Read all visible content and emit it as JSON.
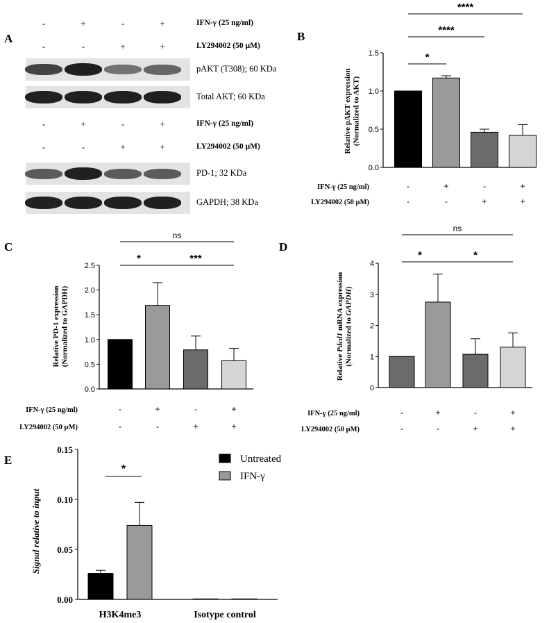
{
  "panels": {
    "A": "A",
    "B": "B",
    "C": "C",
    "D": "D",
    "E": "E"
  },
  "blot_top": {
    "treatments": [
      {
        "label": "IFN-γ (25 ng/ml)",
        "signs": [
          "-",
          "+",
          "-",
          "+"
        ]
      },
      {
        "label": "LY294002 (50 µM)",
        "signs": [
          "-",
          "-",
          "+",
          "+"
        ]
      }
    ],
    "bands": [
      {
        "label": "pAKT (T308); 60 KDa",
        "intensities": [
          0.8,
          0.95,
          0.6,
          0.65
        ]
      },
      {
        "label": "Total AKT; 60 KDa",
        "intensities": [
          0.95,
          0.95,
          0.95,
          0.95
        ]
      }
    ]
  },
  "blot_bottom": {
    "treatments": [
      {
        "label": "IFN-γ (25 ng/ml)",
        "signs": [
          "-",
          "+",
          "-",
          "+"
        ]
      },
      {
        "label": "LY294002 (50 µM)",
        "signs": [
          "-",
          "-",
          "+",
          "+"
        ]
      }
    ],
    "bands": [
      {
        "label": "PD-1; 32 KDa",
        "intensities": [
          0.7,
          0.95,
          0.7,
          0.7
        ]
      },
      {
        "label": "GAPDH; 38 KDa",
        "intensities": [
          0.95,
          0.95,
          0.95,
          0.95
        ]
      }
    ]
  },
  "chart_data": [
    {
      "panel": "B",
      "type": "bar",
      "ylabel": "Relative pAKT expression (Normalized to AKT)",
      "ylim": [
        0,
        1.5
      ],
      "yticks": [
        "0.0",
        "0.5",
        "1.0",
        "1.5"
      ],
      "values": [
        1.0,
        1.17,
        0.46,
        0.42
      ],
      "errors": [
        0,
        0.03,
        0.04,
        0.14
      ],
      "colors": [
        "#000000",
        "#9a9a9a",
        "#6b6b6b",
        "#d5d5d5"
      ],
      "treatments": [
        {
          "label": "IFN-γ (25 ng/ml)",
          "signs": [
            "-",
            "+",
            "-",
            "+"
          ]
        },
        {
          "label": "LY294002 (50 µM)",
          "signs": [
            "-",
            "-",
            "+",
            "+"
          ]
        }
      ],
      "annotations": [
        {
          "from": 0,
          "to": 1,
          "text": "*",
          "level": 0
        },
        {
          "from": 0,
          "to": 2,
          "text": "****",
          "level": 1
        },
        {
          "from": 0,
          "to": 3,
          "text": "****",
          "level": 2
        }
      ]
    },
    {
      "panel": "C",
      "type": "bar",
      "ylabel": "Relative PD-1 expression (Normalized to GAPDH)",
      "ylim": [
        0,
        2.5
      ],
      "yticks": [
        "0.0",
        "0.5",
        "1.0",
        "1.5",
        "2.0",
        "2.5"
      ],
      "values": [
        1.0,
        1.69,
        0.79,
        0.57
      ],
      "errors": [
        0,
        0.46,
        0.28,
        0.25
      ],
      "colors": [
        "#000000",
        "#9a9a9a",
        "#6b6b6b",
        "#d5d5d5"
      ],
      "treatments": [
        {
          "label": "IFN-γ (25 ng/ml)",
          "signs": [
            "-",
            "+",
            "-",
            "+"
          ]
        },
        {
          "label": "LY294002 (50 µM)",
          "signs": [
            "-",
            "-",
            "+",
            "+"
          ]
        }
      ],
      "annotations": [
        {
          "from": 0,
          "to": 1,
          "text": "*",
          "level": 0
        },
        {
          "from": 1,
          "to": 3,
          "text": "***",
          "level": 0
        },
        {
          "from": 0,
          "to": 3,
          "text": "ns",
          "level": 1
        }
      ]
    },
    {
      "panel": "D",
      "type": "bar",
      "ylabel_pre": "Relative ",
      "ylabel_ital": "Pdcd1",
      "ylabel_post": " mRNA expression",
      "ylabel2_pre": "(Normalized to ",
      "ylabel2_ital": "GAPDH",
      "ylabel2_post": ")",
      "ylim": [
        0,
        4
      ],
      "yticks": [
        "0",
        "1",
        "2",
        "3",
        "4"
      ],
      "values": [
        1.0,
        2.75,
        1.07,
        1.3
      ],
      "errors": [
        0,
        0.9,
        0.5,
        0.46
      ],
      "colors": [
        "#6b6b6b",
        "#9a9a9a",
        "#6b6b6b",
        "#d5d5d5"
      ],
      "treatments": [
        {
          "label": "IFN-γ (25 ng/ml)",
          "signs": [
            "-",
            "+",
            "-",
            "+"
          ]
        },
        {
          "label": "LY294002 (50 µM)",
          "signs": [
            "-",
            "-",
            "+",
            "+"
          ]
        }
      ],
      "annotations": [
        {
          "from": 0,
          "to": 1,
          "text": "*",
          "level": 0
        },
        {
          "from": 1,
          "to": 3,
          "text": "*",
          "level": 0
        },
        {
          "from": 0,
          "to": 3,
          "text": "ns",
          "level": 1
        }
      ]
    },
    {
      "panel": "E",
      "type": "bar",
      "ylabel": "Signal relative to input",
      "ylim": [
        0,
        0.15
      ],
      "yticks": [
        "0.00",
        "0.05",
        "0.10",
        "0.15"
      ],
      "categories": [
        "H3K4me3",
        "Isotype control"
      ],
      "series": [
        {
          "name": "Untreated",
          "values": [
            0.026,
            0.0005
          ],
          "errors": [
            0.003,
            0
          ],
          "color": "#000000"
        },
        {
          "name": "IFN-γ",
          "values": [
            0.074,
            0.0005
          ],
          "errors": [
            0.023,
            0
          ],
          "color": "#9a9a9a"
        }
      ],
      "annotations": [
        {
          "text": "*"
        }
      ],
      "legend": "top-right"
    }
  ]
}
